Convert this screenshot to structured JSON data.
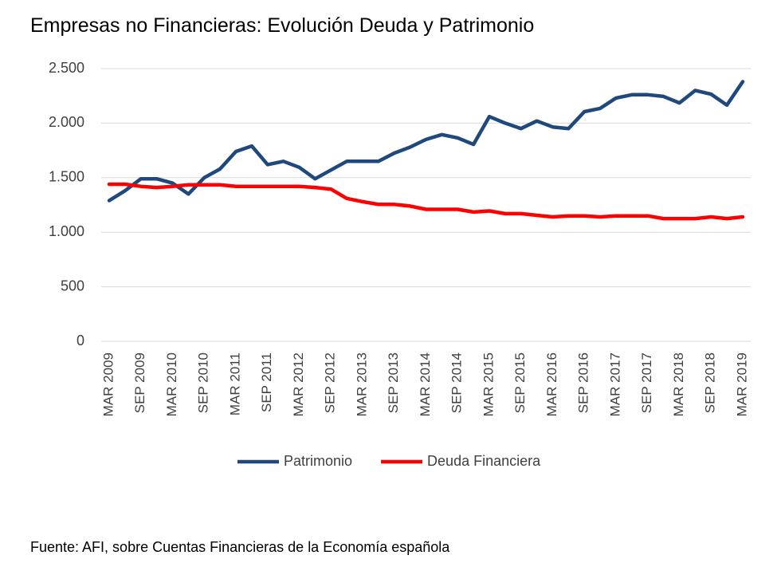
{
  "chart_data": {
    "type": "line",
    "title": "Empresas no Financieras: Evolución Deuda y Patrimonio",
    "source": "Fuente: AFI, sobre Cuentas Financieras de la Economía española",
    "categories": [
      "MAR 2009",
      null,
      "SEP 2009",
      null,
      "MAR 2010",
      null,
      "SEP 2010",
      null,
      "MAR 2011",
      null,
      "SEP 2011",
      null,
      "MAR 2012",
      null,
      "SEP 2012",
      null,
      "MAR 2013",
      null,
      "SEP 2013",
      null,
      "MAR 2014",
      null,
      "SEP 2014",
      null,
      "MAR 2015",
      null,
      "SEP 2015",
      null,
      "MAR 2016",
      null,
      "SEP 2016",
      null,
      "MAR 2017",
      null,
      "SEP 2017",
      null,
      "MAR 2018",
      null,
      "SEP 2018",
      null,
      "MAR 2019"
    ],
    "series": [
      {
        "name": "Patrimonio",
        "color": "#1f497d",
        "values": [
          1290,
          1380,
          1490,
          1490,
          1450,
          1350,
          1500,
          1580,
          1740,
          1790,
          1620,
          1650,
          1595,
          1490,
          1570,
          1650,
          1650,
          1650,
          1725,
          1780,
          1850,
          1895,
          1865,
          1805,
          2060,
          2000,
          1950,
          2020,
          1965,
          1950,
          2105,
          2135,
          2230,
          2260,
          2260,
          2245,
          2185,
          2300,
          2265,
          2165,
          2380
        ]
      },
      {
        "name": "Deuda Financiera",
        "color": "#ff0000",
        "values": [
          1440,
          1440,
          1420,
          1410,
          1420,
          1435,
          1435,
          1435,
          1420,
          1420,
          1420,
          1420,
          1420,
          1410,
          1395,
          1310,
          1280,
          1255,
          1255,
          1240,
          1210,
          1210,
          1210,
          1185,
          1195,
          1170,
          1170,
          1155,
          1140,
          1150,
          1150,
          1140,
          1150,
          1150,
          1150,
          1125,
          1125,
          1125,
          1140,
          1125,
          1140
        ]
      }
    ],
    "ylim": [
      0,
      2500
    ],
    "yticks": [
      0,
      500,
      {
        "value": 1000,
        "label": "1.000"
      },
      {
        "value": 1500,
        "label": "1.500"
      },
      {
        "value": 2000,
        "label": "2.000"
      },
      {
        "value": 2500,
        "label": "2.500"
      }
    ],
    "grid": true
  }
}
